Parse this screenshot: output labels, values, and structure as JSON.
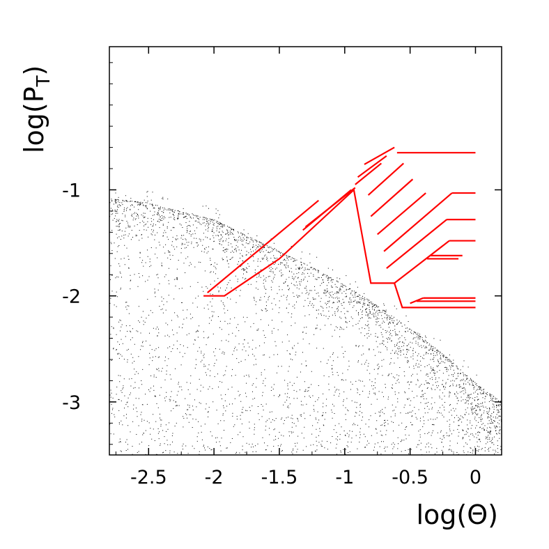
{
  "chart_data": {
    "type": "scatter",
    "title": "",
    "xlabel": "log(Θ)",
    "ylabel": {
      "main": "log(P",
      "sub": "T",
      "close": ")"
    },
    "xlim": [
      -2.8,
      0.2
    ],
    "ylim": [
      -3.5,
      0.35
    ],
    "xticks": [
      -2.5,
      -2,
      -1.5,
      -1,
      -0.5,
      0
    ],
    "xtick_labels": [
      "-2.5",
      "-2",
      "-1.5",
      "-1",
      "-0.5",
      "0"
    ],
    "yticks": [
      -3,
      -2,
      -1
    ],
    "ytick_labels": [
      "-3",
      "-2",
      "-1"
    ],
    "grid": false,
    "legend": "none",
    "colors": {
      "points": "#000000",
      "boundary": "#ff0000",
      "frame": "#000000"
    },
    "point_cloud": {
      "color": "#000000",
      "upper_envelope": [
        [
          -2.8,
          -1.08
        ],
        [
          -2.5,
          -1.12
        ],
        [
          -2.2,
          -1.22
        ],
        [
          -2.0,
          -1.28
        ],
        [
          -1.8,
          -1.4
        ],
        [
          -1.6,
          -1.52
        ],
        [
          -1.4,
          -1.64
        ],
        [
          -1.2,
          -1.76
        ],
        [
          -1.0,
          -1.9
        ],
        [
          -0.8,
          -2.05
        ],
        [
          -0.6,
          -2.22
        ],
        [
          -0.4,
          -2.4
        ],
        [
          -0.2,
          -2.6
        ],
        [
          0.0,
          -2.82
        ],
        [
          0.2,
          -3.0
        ]
      ],
      "lower_bound": -3.5
    },
    "red_region_outline": [
      [
        -2.08,
        -2.0
      ],
      [
        -1.92,
        -2.0
      ],
      [
        -1.5,
        -1.65
      ],
      [
        -0.93,
        -1.0
      ],
      [
        -0.8,
        -1.88
      ],
      [
        -0.62,
        -1.88
      ],
      [
        -0.56,
        -2.11
      ],
      [
        0.0,
        -2.11
      ]
    ],
    "red_lines": [
      [
        [
          -2.05,
          -1.97
        ],
        [
          -1.2,
          -1.1
        ]
      ],
      [
        [
          -1.32,
          -1.38
        ],
        [
          -0.95,
          -1.0
        ]
      ],
      [
        [
          -1.3,
          -1.35
        ],
        [
          -0.92,
          -0.98
        ]
      ],
      [
        [
          -0.92,
          -0.95
        ],
        [
          -0.72,
          -0.75
        ]
      ],
      [
        [
          -0.9,
          -0.88
        ],
        [
          -0.68,
          -0.68
        ]
      ],
      [
        [
          -0.85,
          -0.76
        ],
        [
          -0.62,
          -0.6
        ]
      ],
      [
        [
          -0.6,
          -0.65
        ],
        [
          0.0,
          -0.65
        ]
      ],
      [
        [
          -0.82,
          -1.05
        ],
        [
          -0.55,
          -0.75
        ]
      ],
      [
        [
          -0.8,
          -1.25
        ],
        [
          -0.48,
          -0.9
        ]
      ],
      [
        [
          -0.75,
          -1.42
        ],
        [
          -0.38,
          -1.03
        ]
      ],
      [
        [
          -0.7,
          -1.58
        ],
        [
          -0.18,
          -1.03
        ]
      ],
      [
        [
          -0.18,
          -1.03
        ],
        [
          0.0,
          -1.03
        ]
      ],
      [
        [
          -0.68,
          -1.74
        ],
        [
          -0.22,
          -1.28
        ]
      ],
      [
        [
          -0.22,
          -1.28
        ],
        [
          0.0,
          -1.28
        ]
      ],
      [
        [
          -0.62,
          -1.88
        ],
        [
          -0.2,
          -1.48
        ]
      ],
      [
        [
          -0.2,
          -1.48
        ],
        [
          0.0,
          -1.48
        ]
      ],
      [
        [
          -0.35,
          -1.62
        ],
        [
          -0.1,
          -1.62
        ]
      ],
      [
        [
          -0.37,
          -1.65
        ],
        [
          -0.13,
          -1.65
        ]
      ],
      [
        [
          -0.5,
          -2.07
        ],
        [
          -0.4,
          -2.02
        ]
      ],
      [
        [
          -0.4,
          -2.02
        ],
        [
          0.0,
          -2.02
        ]
      ],
      [
        [
          -0.45,
          -2.05
        ],
        [
          0.0,
          -2.05
        ]
      ]
    ]
  }
}
